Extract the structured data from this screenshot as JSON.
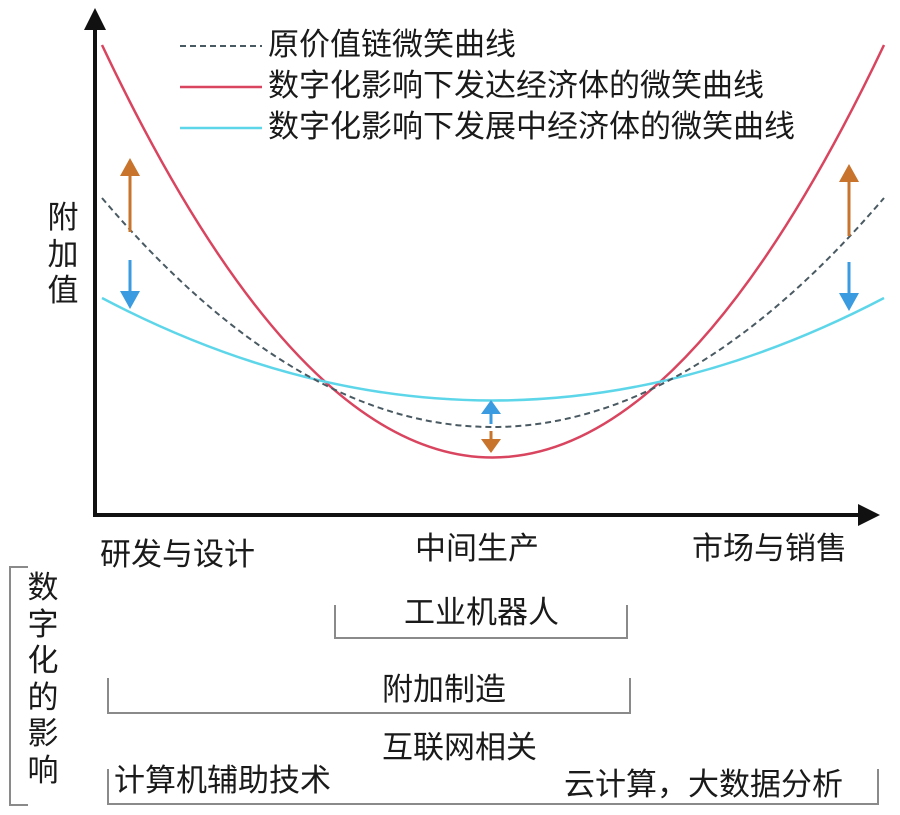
{
  "legend": [
    {
      "label": "原价值链微笑曲线",
      "style": "dashed",
      "color": "#4a5a62"
    },
    {
      "label": "数字化影响下发达经济体的微笑曲线",
      "style": "solid",
      "color": "#d9445f"
    },
    {
      "label": "数字化影响下发展中经济体的微笑曲线",
      "style": "solid",
      "color": "#5ed6ea"
    }
  ],
  "y_axis_label": [
    "附",
    "加",
    "值"
  ],
  "x_stages": [
    "研发与设计",
    "中间生产",
    "市场与销售"
  ],
  "impact_label": [
    "数",
    "字",
    "化",
    "的",
    "影",
    "响"
  ],
  "impacts": {
    "robots": "工业机器人",
    "additive": "附加制造",
    "internet": "互联网相关",
    "cad": "计算机辅助技术",
    "cloud": "云计算，大数据分析"
  },
  "colors": {
    "axis": "#111111",
    "developed": "#d9445f",
    "developing": "#5ed6ea",
    "original": "#4a5a62",
    "arrow_up": "#c8742c",
    "arrow_down": "#3a9be0",
    "bracket": "#8a8a8a"
  }
}
